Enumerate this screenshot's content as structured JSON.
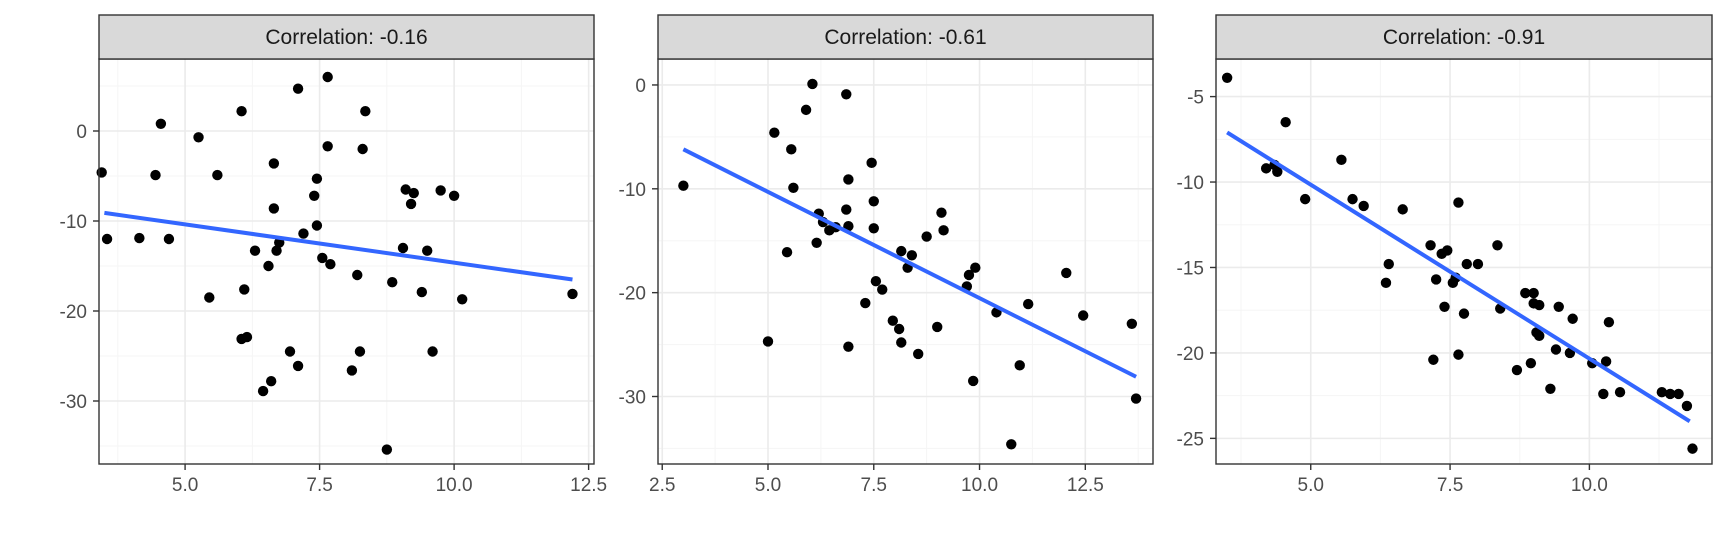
{
  "colors": {
    "points": "#000000",
    "fit_line": "#3366FF",
    "strip_fill": "#D9D9D9",
    "grid_major": "#EBEBEB",
    "grid_minor": "#F5F5F5",
    "border": "#333333"
  },
  "chart_data": [
    {
      "type": "scatter",
      "title": "Correlation: -0.16",
      "xlim": [
        3.4,
        12.6
      ],
      "ylim": [
        -37,
        8
      ],
      "xticks": [
        5.0,
        7.5,
        10.0,
        12.5
      ],
      "xtick_labels": [
        "5.0",
        "7.5",
        "10.0",
        "12.5"
      ],
      "yticks": [
        0,
        -10,
        -20,
        -30
      ],
      "ytick_labels": [
        "0",
        "-10",
        "-20",
        "-30"
      ],
      "trend_line": [
        [
          3.5,
          -9.1
        ],
        [
          12.2,
          -16.5
        ]
      ],
      "points": [
        [
          3.45,
          -4.6
        ],
        [
          3.55,
          -12.0
        ],
        [
          4.15,
          -11.9
        ],
        [
          4.45,
          -4.9
        ],
        [
          4.55,
          0.8
        ],
        [
          4.7,
          -12.0
        ],
        [
          5.25,
          -0.7
        ],
        [
          5.45,
          -18.5
        ],
        [
          5.6,
          -4.9
        ],
        [
          6.05,
          2.2
        ],
        [
          6.05,
          -23.1
        ],
        [
          6.1,
          -17.6
        ],
        [
          6.15,
          -22.9
        ],
        [
          6.3,
          -13.3
        ],
        [
          6.45,
          -28.9
        ],
        [
          6.55,
          -15.0
        ],
        [
          6.6,
          -27.8
        ],
        [
          6.65,
          -8.6
        ],
        [
          6.65,
          -3.6
        ],
        [
          6.7,
          -13.3
        ],
        [
          6.75,
          -12.4
        ],
        [
          6.95,
          -24.5
        ],
        [
          7.1,
          -26.1
        ],
        [
          7.1,
          4.7
        ],
        [
          7.2,
          -11.4
        ],
        [
          7.4,
          -7.2
        ],
        [
          7.45,
          -10.5
        ],
        [
          7.45,
          -5.3
        ],
        [
          7.55,
          -14.1
        ],
        [
          7.65,
          6.0
        ],
        [
          7.65,
          -1.7
        ],
        [
          7.7,
          -14.8
        ],
        [
          8.1,
          -26.6
        ],
        [
          8.2,
          -16.0
        ],
        [
          8.25,
          -24.5
        ],
        [
          8.3,
          -2.0
        ],
        [
          8.35,
          2.2
        ],
        [
          8.75,
          -35.4
        ],
        [
          8.85,
          -16.8
        ],
        [
          9.05,
          -13.0
        ],
        [
          9.1,
          -6.5
        ],
        [
          9.2,
          -8.1
        ],
        [
          9.25,
          -6.9
        ],
        [
          9.4,
          -17.9
        ],
        [
          9.5,
          -13.3
        ],
        [
          9.6,
          -24.5
        ],
        [
          9.75,
          -6.6
        ],
        [
          10.0,
          -7.2
        ],
        [
          10.15,
          -18.7
        ],
        [
          12.2,
          -18.1
        ]
      ]
    },
    {
      "type": "scatter",
      "title": "Correlation: -0.61",
      "xlim": [
        2.4,
        14.1
      ],
      "ylim": [
        -36.5,
        2.5
      ],
      "xticks": [
        2.5,
        5.0,
        7.5,
        10.0,
        12.5
      ],
      "xtick_labels": [
        "2.5",
        "5.0",
        "7.5",
        "10.0",
        "12.5"
      ],
      "yticks": [
        0,
        -10,
        -20,
        -30
      ],
      "ytick_labels": [
        "0",
        "-10",
        "-20",
        "-30"
      ],
      "trend_line": [
        [
          3.0,
          -6.2
        ],
        [
          13.7,
          -28.1
        ]
      ],
      "points": [
        [
          3.0,
          -9.7
        ],
        [
          5.0,
          -24.7
        ],
        [
          5.15,
          -4.6
        ],
        [
          5.45,
          -16.1
        ],
        [
          5.55,
          -6.2
        ],
        [
          5.6,
          -9.9
        ],
        [
          5.9,
          -2.4
        ],
        [
          6.05,
          0.1
        ],
        [
          6.15,
          -15.2
        ],
        [
          6.2,
          -12.4
        ],
        [
          6.3,
          -13.2
        ],
        [
          6.45,
          -14.0
        ],
        [
          6.6,
          -13.7
        ],
        [
          6.85,
          -0.9
        ],
        [
          6.85,
          -12.0
        ],
        [
          6.9,
          -9.1
        ],
        [
          6.9,
          -25.2
        ],
        [
          6.9,
          -13.6
        ],
        [
          7.3,
          -21.0
        ],
        [
          7.45,
          -7.5
        ],
        [
          7.5,
          -11.2
        ],
        [
          7.5,
          -13.8
        ],
        [
          7.55,
          -18.9
        ],
        [
          7.7,
          -19.7
        ],
        [
          7.95,
          -22.7
        ],
        [
          8.1,
          -23.5
        ],
        [
          8.15,
          -16.0
        ],
        [
          8.15,
          -24.8
        ],
        [
          8.3,
          -17.6
        ],
        [
          8.4,
          -16.4
        ],
        [
          8.55,
          -25.9
        ],
        [
          8.75,
          -14.6
        ],
        [
          9.0,
          -23.3
        ],
        [
          9.1,
          -12.3
        ],
        [
          9.15,
          -14.0
        ],
        [
          9.7,
          -19.4
        ],
        [
          9.75,
          -18.3
        ],
        [
          9.85,
          -28.5
        ],
        [
          9.9,
          -17.6
        ],
        [
          10.4,
          -21.9
        ],
        [
          10.75,
          -34.6
        ],
        [
          10.95,
          -27.0
        ],
        [
          11.15,
          -21.1
        ],
        [
          12.05,
          -18.1
        ],
        [
          12.45,
          -22.2
        ],
        [
          13.6,
          -23.0
        ],
        [
          13.7,
          -30.2
        ]
      ]
    },
    {
      "type": "scatter",
      "title": "Correlation: -0.91",
      "xlim": [
        3.3,
        12.2
      ],
      "ylim": [
        -26.5,
        -2.8
      ],
      "xticks": [
        5.0,
        7.5,
        10.0
      ],
      "xtick_labels": [
        "5.0",
        "7.5",
        "10.0"
      ],
      "yticks": [
        -5,
        -10,
        -15,
        -20,
        -25
      ],
      "ytick_labels": [
        "-5",
        "-10",
        "-15",
        "-20",
        "-25"
      ],
      "trend_line": [
        [
          3.5,
          -7.1
        ],
        [
          11.8,
          -24.0
        ]
      ],
      "points": [
        [
          3.5,
          -3.9
        ],
        [
          4.2,
          -9.2
        ],
        [
          4.35,
          -9.0
        ],
        [
          4.4,
          -9.4
        ],
        [
          4.55,
          -6.5
        ],
        [
          4.9,
          -11.0
        ],
        [
          5.55,
          -8.7
        ],
        [
          5.75,
          -11.0
        ],
        [
          5.95,
          -11.4
        ],
        [
          6.35,
          -15.9
        ],
        [
          6.4,
          -14.8
        ],
        [
          6.65,
          -11.6
        ],
        [
          7.15,
          -13.7
        ],
        [
          7.2,
          -20.4
        ],
        [
          7.25,
          -15.7
        ],
        [
          7.35,
          -14.2
        ],
        [
          7.4,
          -17.3
        ],
        [
          7.45,
          -14.0
        ],
        [
          7.55,
          -15.9
        ],
        [
          7.6,
          -15.6
        ],
        [
          7.65,
          -20.1
        ],
        [
          7.65,
          -11.2
        ],
        [
          7.75,
          -17.7
        ],
        [
          7.8,
          -14.8
        ],
        [
          8.0,
          -14.8
        ],
        [
          8.35,
          -13.7
        ],
        [
          8.4,
          -17.4
        ],
        [
          8.7,
          -21.0
        ],
        [
          8.85,
          -16.5
        ],
        [
          8.95,
          -20.6
        ],
        [
          9.0,
          -16.5
        ],
        [
          9.0,
          -17.1
        ],
        [
          9.05,
          -18.8
        ],
        [
          9.1,
          -19.0
        ],
        [
          9.1,
          -17.2
        ],
        [
          9.3,
          -22.1
        ],
        [
          9.4,
          -19.8
        ],
        [
          9.45,
          -17.3
        ],
        [
          9.65,
          -20.0
        ],
        [
          9.7,
          -18.0
        ],
        [
          10.05,
          -20.6
        ],
        [
          10.25,
          -22.4
        ],
        [
          10.3,
          -20.5
        ],
        [
          10.35,
          -18.2
        ],
        [
          10.55,
          -22.3
        ],
        [
          11.3,
          -22.3
        ],
        [
          11.45,
          -22.4
        ],
        [
          11.6,
          -22.4
        ],
        [
          11.75,
          -23.1
        ],
        [
          11.85,
          -25.6
        ]
      ]
    }
  ]
}
